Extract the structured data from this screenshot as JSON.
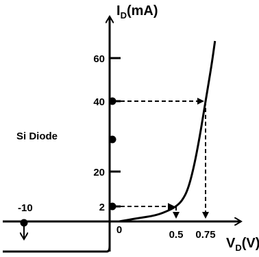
{
  "chart_data": {
    "type": "line",
    "title": "",
    "annotation": "Si Diode",
    "x_axis": {
      "label_main": "V",
      "label_sub": "D",
      "label_unit": "(V)",
      "ticks": [
        {
          "value": 0,
          "label": "0"
        },
        {
          "value": 0.5,
          "label": "0.5"
        },
        {
          "value": 0.75,
          "label": "0.75"
        }
      ]
    },
    "y_axis": {
      "label_main": "I",
      "label_sub": "D",
      "label_unit": "(mA)",
      "ticks": [
        {
          "value": 2,
          "label": "2"
        },
        {
          "value": 20,
          "label": "20"
        },
        {
          "value": 40,
          "label": "40"
        },
        {
          "value": 60,
          "label": "60"
        }
      ]
    },
    "neg_marker": {
      "label": "-10"
    },
    "series": [
      {
        "points": [
          {
            "x": 0.07,
            "y": 0
          },
          {
            "x": 0.2,
            "y": 0.4
          },
          {
            "x": 0.35,
            "y": 0.8
          },
          {
            "x": 0.45,
            "y": 1.5
          },
          {
            "x": 0.5,
            "y": 2
          },
          {
            "x": 0.55,
            "y": 4
          },
          {
            "x": 0.6,
            "y": 8
          },
          {
            "x": 0.65,
            "y": 16
          },
          {
            "x": 0.7,
            "y": 27
          },
          {
            "x": 0.75,
            "y": 40
          },
          {
            "x": 0.8,
            "y": 54
          },
          {
            "x": 0.83,
            "y": 64
          }
        ]
      }
    ],
    "reverse_region": {
      "x_start": 0,
      "x_end": -1.2,
      "y": -3.2
    },
    "operating_points": [
      {
        "x": 0.5,
        "y": 2
      },
      {
        "x": 0.75,
        "y": 40
      }
    ],
    "axis_dots": [
      2,
      30,
      40
    ],
    "colors": {
      "ink": "#000000",
      "background": "#ffffff"
    }
  }
}
